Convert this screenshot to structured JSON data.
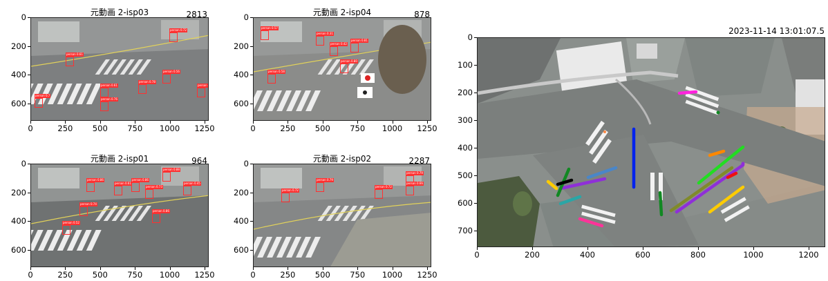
{
  "panels": [
    {
      "id": "isp03",
      "title": "元動画 2-isp03",
      "count": "2813",
      "xticks": [
        "0",
        "250",
        "500",
        "750",
        "1000",
        "1250"
      ],
      "yticks": [
        "0",
        "200",
        "400",
        "600"
      ],
      "detections": [
        "person 0.72",
        "person 0.61",
        "person 0.61",
        "person 0.56",
        "person 0.78",
        "person 0.7",
        "person 0.76",
        "person 0.84"
      ]
    },
    {
      "id": "isp04",
      "title": "元動画 2-isp04",
      "count": "878",
      "xticks": [
        "0",
        "250",
        "500",
        "750",
        "1000",
        "1250"
      ],
      "yticks": [
        "0",
        "200",
        "400",
        "600"
      ],
      "detections": [
        "person 0.57",
        "person 0.31",
        "person 0.42",
        "person 0.81",
        "person 0.80",
        "person 0.58"
      ]
    },
    {
      "id": "isp01",
      "title": "元動画 2-isp01",
      "count": "964",
      "xticks": [
        "0",
        "250",
        "500",
        "750",
        "1000",
        "1250"
      ],
      "yticks": [
        "0",
        "200",
        "400",
        "600"
      ],
      "detections": [
        "person 0.88",
        "person 0.86",
        "person 0.61",
        "person 0.86",
        "person 0.73",
        "person 0.74",
        "person 0.86",
        "person 0.45",
        "person 0.52"
      ]
    },
    {
      "id": "isp02",
      "title": "元動画 2-isp02",
      "count": "2287",
      "xticks": [
        "0",
        "250",
        "500",
        "750",
        "1000",
        "1250"
      ],
      "yticks": [
        "0",
        "200",
        "400",
        "600"
      ],
      "detections": [
        "person 0.79",
        "person 0.72",
        "person 0.79",
        "person 0.66",
        "person 0.72"
      ]
    }
  ],
  "map": {
    "timestamp": "2023-11-14 13:01:07.5",
    "xticks": [
      "0",
      "200",
      "400",
      "600",
      "800",
      "1000",
      "1200"
    ],
    "yticks": [
      "0",
      "100",
      "200",
      "300",
      "400",
      "500",
      "600",
      "700"
    ]
  },
  "colors": {
    "bbox": "#ff3030",
    "road": "#8c8c8c",
    "crosswalk": "#f4f4f4"
  }
}
